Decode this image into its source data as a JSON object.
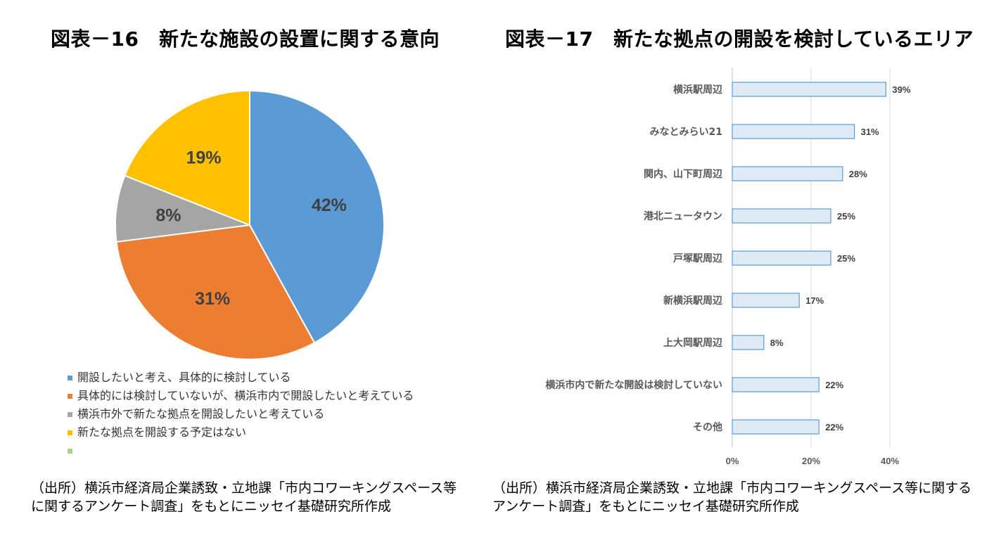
{
  "charts": {
    "left_title": "図表－16　新たな施設の設置に関する意向",
    "right_title": "図表－17　新たな拠点の開設を検討しているエリア"
  },
  "chart_data": [
    {
      "type": "pie",
      "title": "図表－16　新たな施設の設置に関する意向",
      "slices": [
        {
          "label": "開設したいと考え、具体的に検討している",
          "value": 42,
          "display": "42%",
          "color": "#5B9BD5"
        },
        {
          "label": "具体的には検討していないが、横浜市内で開設したいと考えている",
          "value": 31,
          "display": "31%",
          "color": "#ED7D31"
        },
        {
          "label": "横浜市外で新たな拠点を開設したいと考えている",
          "value": 8,
          "display": "8%",
          "color": "#A5A5A5"
        },
        {
          "label": "新たな拠点を開設する予定はない",
          "value": 19,
          "display": "19%",
          "color": "#FFC000"
        }
      ],
      "legend_extra": {
        "label": "",
        "color": "#A9D18E"
      },
      "legend_position": "bottom"
    },
    {
      "type": "bar",
      "orientation": "horizontal",
      "title": "図表－17　新たな拠点の開設を検討しているエリア",
      "categories": [
        "横浜駅周辺",
        "みなとみらい21",
        "関内、山下町周辺",
        "港北ニュータウン",
        "戸塚駅周辺",
        "新横浜駅周辺",
        "上大岡駅周辺",
        "横浜市内で新たな開設は検討していない",
        "その他"
      ],
      "values": [
        39,
        31,
        28,
        25,
        25,
        17,
        8,
        22,
        22
      ],
      "labels": [
        "39%",
        "31%",
        "28%",
        "25%",
        "25%",
        "17%",
        "8%",
        "22%",
        "22%"
      ],
      "xlim": [
        0,
        40
      ],
      "xticks": [
        "0%",
        "20%",
        "40%"
      ],
      "grid": true,
      "bar_fill": "#DEEBF7",
      "bar_stroke": "#5B9BD5"
    }
  ],
  "sources": {
    "left": "（出所）横浜市経済局企業誘致・立地課「市内コワーキングスペース等に関するアンケート調査」をもとにニッセイ基礎研究所作成",
    "right": "（出所）横浜市経済局企業誘致・立地課「市内コワーキングスペース等に関するアンケート調査」をもとにニッセイ基礎研究所作成"
  }
}
